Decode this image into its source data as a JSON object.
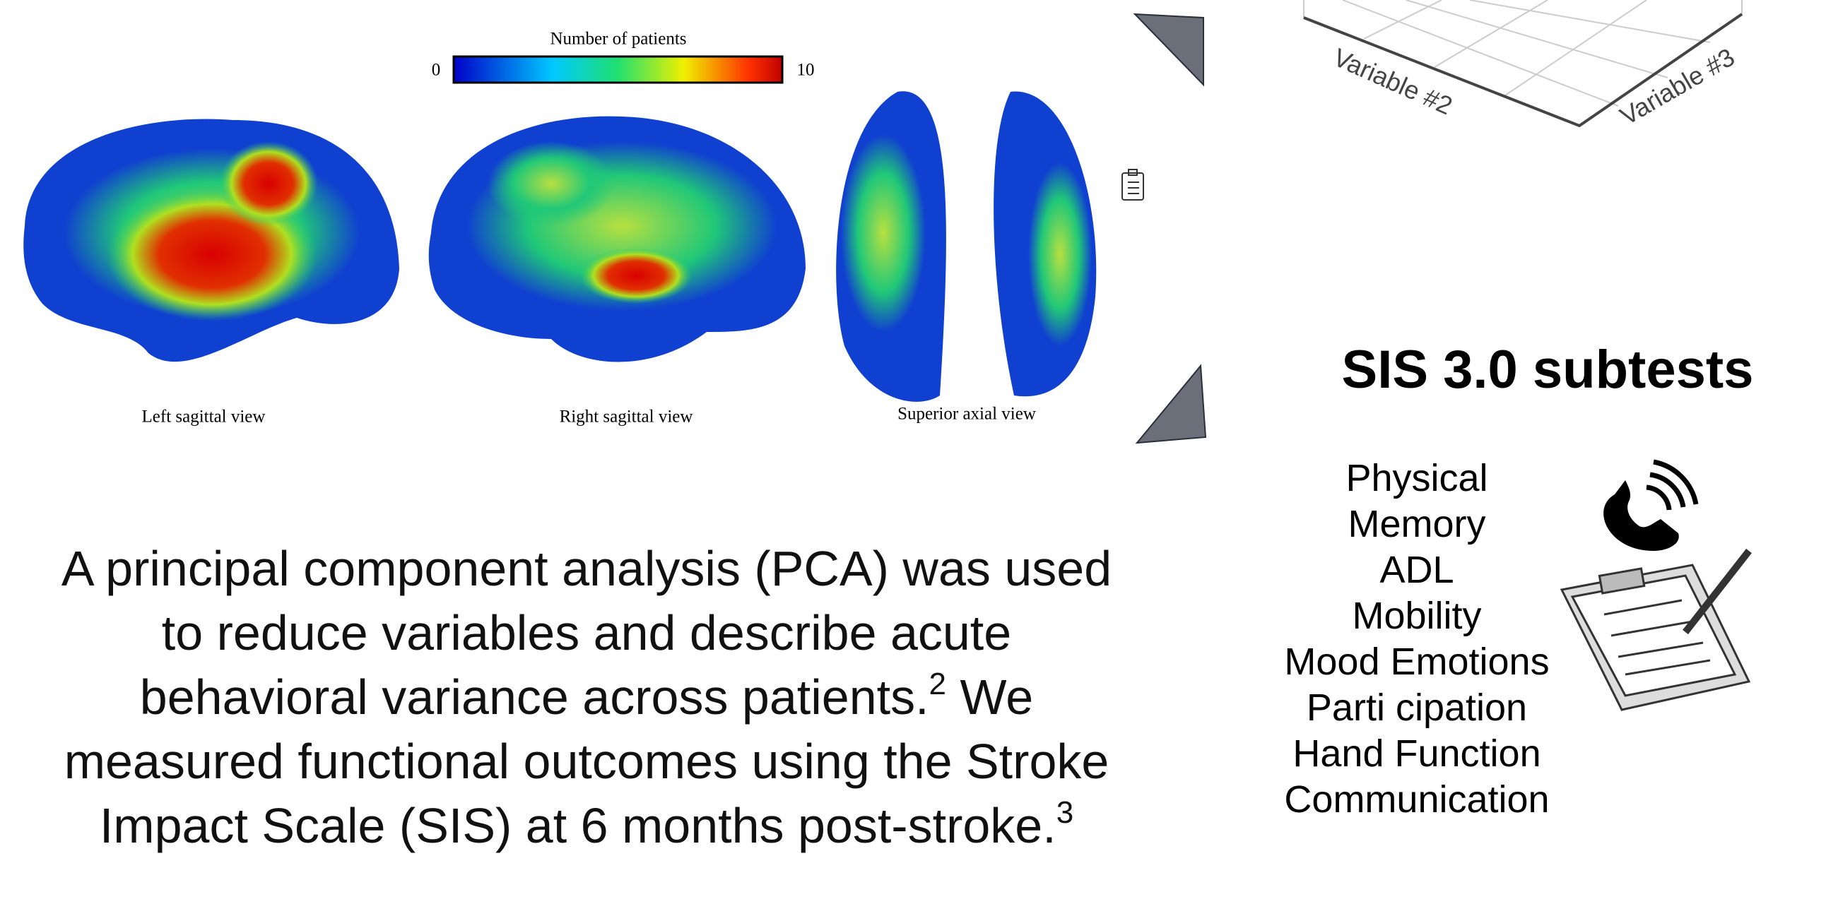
{
  "figure": {
    "colorbar_title": "Number of patients",
    "colorbar_min": "0",
    "colorbar_max": "10",
    "views": [
      "Left sagittal view",
      "Right sagittal view",
      "Superior axial view"
    ]
  },
  "plot": {
    "axis_labels": [
      "Variable #2",
      "Variable #3"
    ]
  },
  "paragraph": {
    "text_1": "A principal component analysis (PCA) was used to reduce variables and describe acute behavioral variance across patients.",
    "ref_1": "2",
    "text_2": " We measured functional outcomes using the Stroke Impact Scale (SIS) at 6 months post-stroke.",
    "ref_2": "3"
  },
  "sis": {
    "title": "SIS 3.0 subtests",
    "subtests": [
      "Physical",
      "Memory",
      "ADL",
      "Mobility",
      "Mood Emotions",
      "Parti cipation",
      "Hand Function",
      "Communication"
    ]
  }
}
